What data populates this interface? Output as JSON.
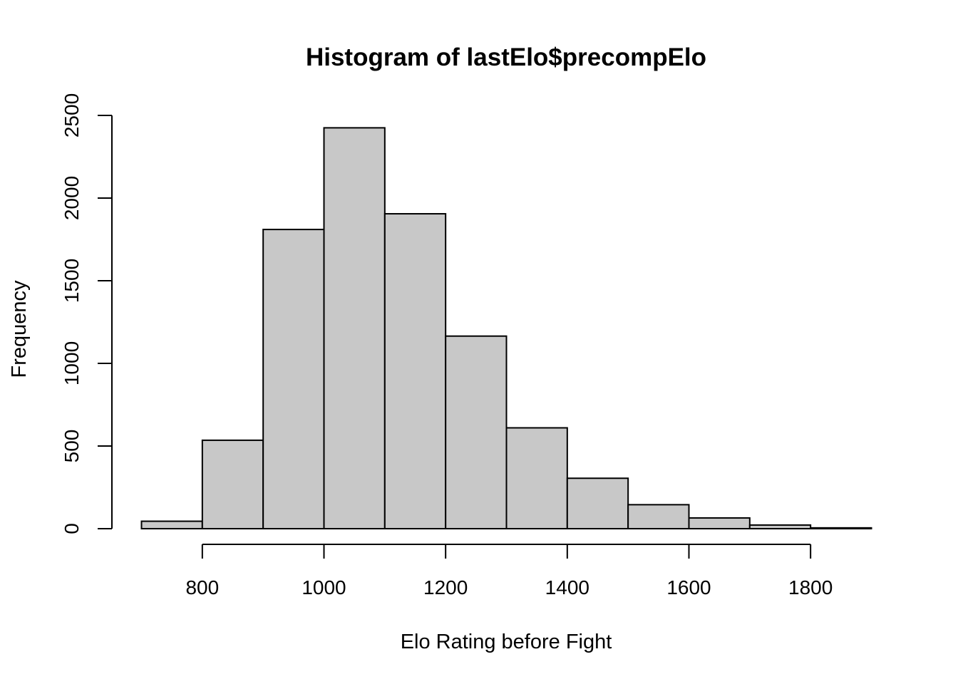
{
  "chart_data": {
    "type": "bar",
    "title": "Histogram of lastElo$precompElo",
    "xlabel": "Elo Rating before Fight",
    "ylabel": "Frequency",
    "bin_edges": [
      700,
      800,
      900,
      1000,
      1100,
      1200,
      1300,
      1400,
      1500,
      1600,
      1700,
      1800,
      1900
    ],
    "values": [
      45,
      535,
      1810,
      2425,
      1905,
      1165,
      610,
      305,
      145,
      65,
      22,
      5
    ],
    "xlim": [
      700,
      1900
    ],
    "ylim": [
      0,
      2500
    ],
    "x_ticks": [
      "800",
      "1000",
      "1200",
      "1400",
      "1600",
      "1800"
    ],
    "y_ticks": [
      "0",
      "500",
      "1000",
      "1500",
      "2000",
      "2500"
    ],
    "bar_color": "#c8c8c8",
    "grid": false
  }
}
